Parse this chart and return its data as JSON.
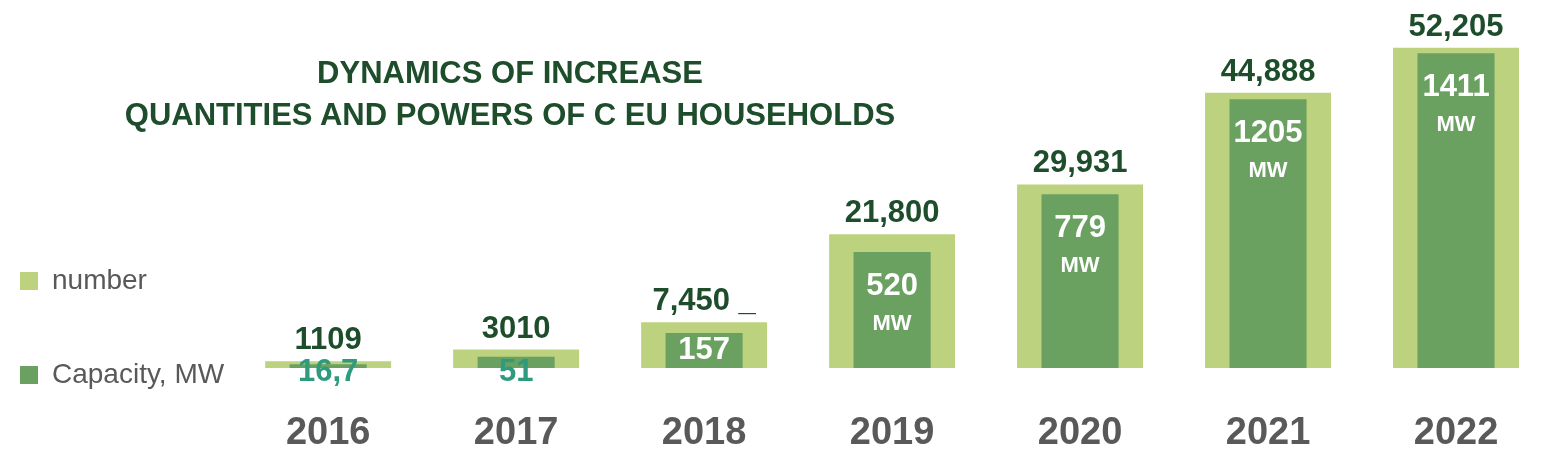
{
  "chart_data": {
    "type": "bar",
    "title": "DYNAMICS OF INCREASE\nQUANTITIES AND POWERS OF C EU HOUSEHOLDS",
    "categories": [
      "2016",
      "2017",
      "2018",
      "2019",
      "2020",
      "2021",
      "2022"
    ],
    "series": [
      {
        "name": "number",
        "color": "#bcd27f",
        "values": [
          1109,
          3010,
          7450,
          21800,
          29931,
          44888,
          52205
        ],
        "value_labels": [
          "1109",
          "3010",
          "7,450 _",
          "21,800",
          "29,931",
          "44,888",
          "52,205"
        ]
      },
      {
        "name": "Capacity, MW",
        "color": "#6aa060",
        "axis": "y2",
        "values": [
          16.7,
          51,
          157,
          520,
          779,
          1205,
          1411
        ],
        "value_labels": [
          "16,7",
          "51",
          "157",
          "520\nMW",
          "779\nMW",
          "1205\nMW",
          "1411\nMW"
        ]
      }
    ],
    "ylim": [
      0,
      60000
    ],
    "y2lim": [
      0,
      1650
    ],
    "legend": "left",
    "tick_labels": "x"
  }
}
